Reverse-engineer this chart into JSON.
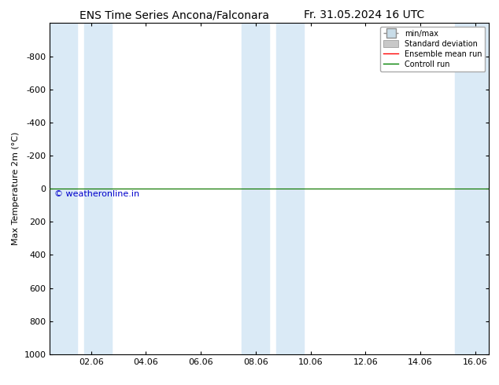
{
  "title_left": "ENS Time Series Ancona/Falconara",
  "title_right": "Fr. 31.05.2024 16 UTC",
  "ylabel": "Max Temperature 2m (°C)",
  "watermark": "© weatheronline.in",
  "ylim_bottom": 1000,
  "ylim_top": -1000,
  "yticks": [
    -800,
    -600,
    -400,
    -200,
    0,
    200,
    400,
    600,
    800,
    1000
  ],
  "xlim_left": 0.5,
  "xlim_right": 16.5,
  "xtick_labels": [
    "02.06",
    "04.06",
    "06.06",
    "08.06",
    "10.06",
    "12.06",
    "14.06",
    "16.06"
  ],
  "xtick_positions": [
    2,
    4,
    6,
    8,
    10,
    12,
    14,
    16
  ],
  "shaded_columns": [
    {
      "x_start": 0.5,
      "x_end": 1.5
    },
    {
      "x_start": 1.75,
      "x_end": 2.75
    },
    {
      "x_start": 7.5,
      "x_end": 8.5
    },
    {
      "x_start": 8.75,
      "x_end": 9.75
    },
    {
      "x_start": 15.25,
      "x_end": 16.5
    }
  ],
  "shaded_color": "#daeaf6",
  "line_y": 0,
  "ensemble_mean_color": "#ff0000",
  "control_run_color": "#008000",
  "min_max_color": "#c8dce8",
  "std_dev_color": "#c8c8c8",
  "background_color": "#ffffff",
  "title_fontsize": 10,
  "axis_fontsize": 8,
  "tick_fontsize": 8,
  "legend_entries": [
    "min/max",
    "Standard deviation",
    "Ensemble mean run",
    "Controll run"
  ],
  "legend_colors_line": [
    "#909090",
    "#909090",
    "#ff0000",
    "#008000"
  ],
  "legend_fill_colors": [
    "#c8dce8",
    "#c8c8c8",
    "none",
    "none"
  ]
}
